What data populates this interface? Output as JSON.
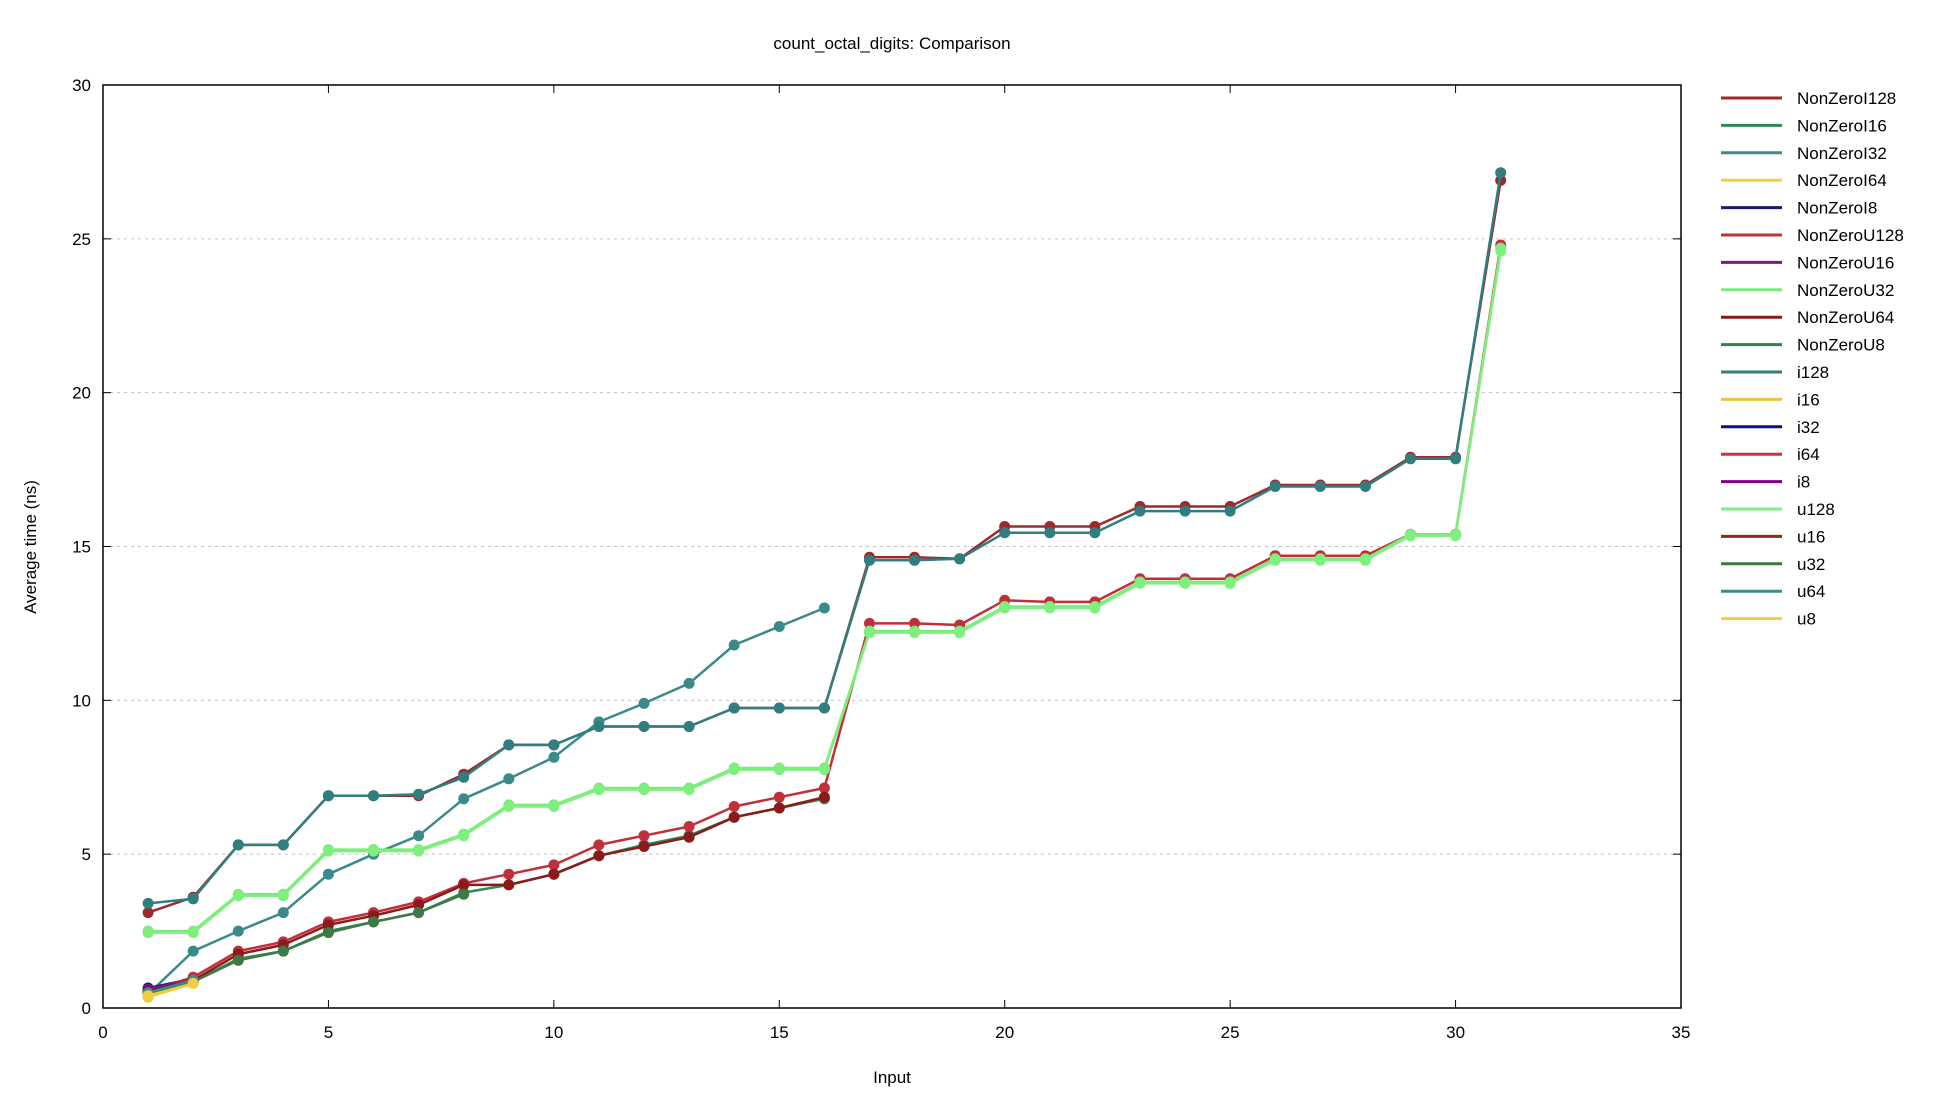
{
  "chart_data": {
    "type": "line",
    "title": "count_octal_digits: Comparison",
    "xlabel": "Input",
    "ylabel": "Average time (ns)",
    "xlim": [
      0,
      35
    ],
    "ylim": [
      0,
      30
    ],
    "xticks": [
      0,
      5,
      10,
      15,
      20,
      25,
      30,
      35
    ],
    "yticks": [
      0,
      5,
      10,
      15,
      20,
      25,
      30
    ],
    "grid": "horizontal dotted",
    "legend_position": "right",
    "series": [
      {
        "name": "NonZeroI128",
        "color": "#9e2a2b",
        "x": [
          1,
          2,
          3,
          4,
          5,
          6,
          7,
          8,
          9,
          10,
          11,
          12,
          13,
          14,
          15,
          16,
          17,
          18,
          19,
          20,
          21,
          22,
          23,
          24,
          25,
          26,
          27,
          28,
          29,
          30,
          31
        ],
        "y": [
          3.1,
          3.6,
          5.3,
          5.3,
          6.9,
          6.9,
          6.9,
          7.6,
          8.55,
          8.55,
          9.15,
          9.15,
          9.15,
          9.75,
          9.75,
          9.75,
          14.65,
          14.65,
          14.6,
          15.65,
          15.65,
          15.65,
          16.3,
          16.3,
          16.3,
          17.0,
          17.0,
          17.0,
          17.9,
          17.9,
          26.9
        ]
      },
      {
        "name": "NonZeroI16",
        "color": "#2e8b57",
        "x": [
          1,
          2,
          3,
          4,
          5,
          6,
          7,
          8,
          9,
          10,
          11,
          12,
          13,
          14,
          15,
          16
        ],
        "y": [
          0.5,
          0.85,
          1.6,
          1.85,
          2.5,
          2.8,
          3.1,
          3.75,
          4.0,
          4.35,
          4.95,
          5.3,
          5.6,
          6.2,
          6.5,
          6.8
        ]
      },
      {
        "name": "NonZeroI32",
        "color": "#3a8a8a",
        "x": [
          1,
          2,
          3,
          4,
          5,
          6,
          7,
          8,
          9,
          10,
          11,
          12,
          13,
          14,
          15,
          16
        ],
        "y": [
          0.45,
          1.85,
          2.5,
          3.1,
          4.35,
          5.0,
          5.6,
          6.8,
          7.45,
          8.15,
          9.3,
          9.9,
          10.55,
          11.8,
          12.4,
          13.0
        ]
      },
      {
        "name": "NonZeroI64",
        "color": "#f0d040",
        "x": [
          1,
          2
        ],
        "y": [
          0.4,
          0.85
        ]
      },
      {
        "name": "NonZeroI8",
        "color": "#1a1a7a",
        "x": [
          1,
          2
        ],
        "y": [
          0.65,
          0.95
        ]
      },
      {
        "name": "NonZeroU128",
        "color": "#c0303a",
        "x": [
          1,
          2,
          3,
          4,
          5,
          6,
          7,
          8,
          9,
          10,
          11,
          12,
          13,
          14,
          15,
          16,
          17,
          18,
          19,
          20,
          21,
          22,
          23,
          24,
          25,
          26,
          27,
          28,
          29,
          30,
          31
        ],
        "y": [
          0.55,
          1.0,
          1.85,
          2.15,
          2.8,
          3.1,
          3.45,
          4.05,
          4.35,
          4.65,
          5.3,
          5.6,
          5.9,
          6.55,
          6.85,
          7.15,
          12.5,
          12.5,
          12.45,
          13.25,
          13.2,
          13.2,
          13.95,
          13.95,
          13.95,
          14.7,
          14.7,
          14.7,
          15.4,
          15.4,
          24.8
        ]
      },
      {
        "name": "NonZeroU16",
        "color": "#7a1a7a",
        "x": [
          1,
          2
        ],
        "y": [
          0.6,
          0.95
        ]
      },
      {
        "name": "NonZeroU32",
        "color": "#7de87d",
        "x": [
          1,
          2,
          3,
          4,
          5,
          6,
          7,
          8,
          9,
          10,
          11,
          12,
          13,
          14,
          15,
          16,
          17,
          18,
          19,
          20,
          21,
          22,
          23,
          24,
          25,
          26,
          27,
          28,
          29,
          30,
          31
        ],
        "y": [
          2.5,
          2.5,
          3.7,
          3.7,
          5.15,
          5.15,
          5.15,
          5.65,
          6.6,
          6.6,
          7.15,
          7.15,
          7.15,
          7.8,
          7.8,
          7.8,
          12.25,
          12.25,
          12.25,
          13.05,
          13.05,
          13.05,
          13.85,
          13.85,
          13.85,
          14.6,
          14.6,
          14.6,
          15.4,
          15.4,
          24.7
        ]
      },
      {
        "name": "NonZeroU64",
        "color": "#8b1a1a",
        "x": [
          1,
          2,
          3,
          4,
          5,
          6,
          7,
          8,
          9,
          10,
          11,
          12,
          13,
          14,
          15,
          16
        ],
        "y": [
          0.5,
          0.9,
          1.75,
          2.05,
          2.7,
          3.0,
          3.35,
          4.0,
          4.0,
          4.35,
          4.95,
          5.25,
          5.55,
          6.2,
          6.5,
          6.85
        ]
      },
      {
        "name": "NonZeroU8",
        "color": "#3d7a45",
        "x": [
          1,
          2,
          3,
          4,
          5,
          6,
          7,
          8
        ],
        "y": [
          0.45,
          0.85,
          1.55,
          1.85,
          2.45,
          2.8,
          3.1,
          3.7
        ]
      },
      {
        "name": "i128",
        "color": "#2f7f80",
        "x": [
          1,
          2,
          3,
          4,
          5,
          6,
          7,
          8,
          9,
          10,
          11,
          12,
          13,
          14,
          15,
          16,
          17,
          18,
          19,
          20,
          21,
          22,
          23,
          24,
          25,
          26,
          27,
          28,
          29,
          30,
          31
        ],
        "y": [
          3.4,
          3.55,
          5.3,
          5.3,
          6.9,
          6.9,
          6.95,
          7.5,
          8.55,
          8.55,
          9.15,
          9.15,
          9.15,
          9.75,
          9.75,
          9.75,
          14.55,
          14.55,
          14.6,
          15.45,
          15.45,
          15.45,
          16.15,
          16.15,
          16.15,
          16.95,
          16.95,
          16.95,
          17.85,
          17.85,
          27.15
        ]
      },
      {
        "name": "i16",
        "color": "#e8c840",
        "x": [
          1,
          2
        ],
        "y": [
          0.35,
          0.8
        ]
      },
      {
        "name": "i32",
        "color": "#10107a",
        "x": [
          1,
          2
        ],
        "y": [
          0.55,
          0.9
        ]
      },
      {
        "name": "i64",
        "color": "#d03040",
        "x": [
          1,
          2
        ],
        "y": [
          0.5,
          0.95
        ]
      },
      {
        "name": "i8",
        "color": "#800080",
        "x": [
          1,
          2
        ],
        "y": [
          0.55,
          0.9
        ]
      },
      {
        "name": "u128",
        "color": "#7ef07e",
        "x": [
          1,
          2,
          3,
          4,
          5,
          6,
          7,
          8,
          9,
          10,
          11,
          12,
          13,
          14,
          15,
          16,
          17,
          18,
          19,
          20,
          21,
          22,
          23,
          24,
          25,
          26,
          27,
          28,
          29,
          30,
          31
        ],
        "y": [
          2.45,
          2.45,
          3.65,
          3.65,
          5.1,
          5.1,
          5.1,
          5.6,
          6.55,
          6.55,
          7.1,
          7.1,
          7.1,
          7.75,
          7.75,
          7.75,
          12.2,
          12.2,
          12.2,
          13.0,
          13.0,
          13.0,
          13.8,
          13.8,
          13.8,
          14.55,
          14.55,
          14.55,
          15.35,
          15.35,
          24.6
        ]
      },
      {
        "name": "u16",
        "color": "#8b2a1a",
        "x": [
          1,
          2
        ],
        "y": [
          0.5,
          0.9
        ]
      },
      {
        "name": "u32",
        "color": "#3a7a3a",
        "x": [
          1,
          2
        ],
        "y": [
          0.45,
          0.85
        ]
      },
      {
        "name": "u64",
        "color": "#3a8a85",
        "x": [
          1,
          2
        ],
        "y": [
          0.5,
          0.9
        ]
      },
      {
        "name": "u8",
        "color": "#f0d040",
        "x": [
          1,
          2
        ],
        "y": [
          0.4,
          0.8
        ]
      }
    ]
  }
}
